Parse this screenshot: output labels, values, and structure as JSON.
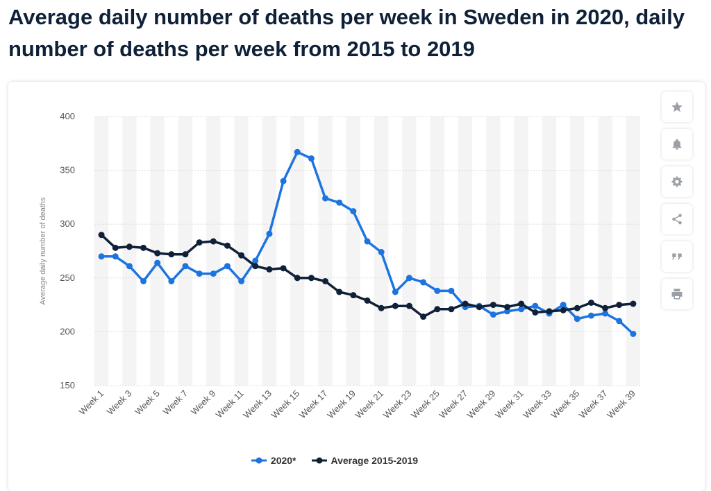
{
  "title": "Average daily number of deaths per week in Sweden in 2020, daily number of deaths per week from 2015 to 2019",
  "toolbar": [
    "star-icon",
    "bell-icon",
    "gear-icon",
    "share-icon",
    "quote-icon",
    "print-icon"
  ],
  "colors": {
    "series_2020": "#1d74e0",
    "series_avg": "#0f2138",
    "grid": "#dcdcdc",
    "band": "#f4f4f4"
  },
  "chart_data": {
    "type": "line",
    "ylabel": "Average daily number of deaths",
    "ylim": [
      150,
      400
    ],
    "yticks": [
      150,
      200,
      250,
      300,
      350,
      400
    ],
    "grid": true,
    "legend_position": "bottom",
    "x": [
      "Week 1",
      "Week 2",
      "Week 3",
      "Week 4",
      "Week 5",
      "Week 6",
      "Week 7",
      "Week 8",
      "Week 9",
      "Week 10",
      "Week 11",
      "Week 12",
      "Week 13",
      "Week 14",
      "Week 15",
      "Week 16",
      "Week 17",
      "Week 18",
      "Week 19",
      "Week 20",
      "Week 21",
      "Week 22",
      "Week 23",
      "Week 24",
      "Week 25",
      "Week 26",
      "Week 27",
      "Week 28",
      "Week 29",
      "Week 30",
      "Week 31",
      "Week 32",
      "Week 33",
      "Week 34",
      "Week 35",
      "Week 36",
      "Week 37",
      "Week 38",
      "Week 39"
    ],
    "x_tick_labels": [
      "Week 1",
      "Week 3",
      "Week 5",
      "Week 7",
      "Week 9",
      "Week 11",
      "Week 13",
      "Week 15",
      "Week 17",
      "Week 19",
      "Week 21",
      "Week 23",
      "Week 25",
      "Week 27",
      "Week 29",
      "Week 31",
      "Week 33",
      "Week 35",
      "Week 37",
      "Week 39"
    ],
    "series": [
      {
        "name": "2020*",
        "values": [
          270,
          270,
          261,
          247,
          264,
          247,
          261,
          254,
          254,
          261,
          247,
          266,
          291,
          340,
          367,
          361,
          324,
          320,
          312,
          284,
          274,
          237,
          250,
          246,
          238,
          238,
          223,
          224,
          216,
          219,
          221,
          224,
          217,
          225,
          212,
          215,
          217,
          210,
          198
        ]
      },
      {
        "name": "Average 2015-2019",
        "values": [
          290,
          278,
          279,
          278,
          273,
          272,
          272,
          283,
          284,
          280,
          271,
          261,
          258,
          259,
          250,
          250,
          247,
          237,
          234,
          229,
          222,
          224,
          224,
          214,
          221,
          221,
          226,
          223,
          225,
          223,
          226,
          218,
          219,
          220,
          222,
          227,
          222,
          225,
          226
        ]
      }
    ]
  }
}
